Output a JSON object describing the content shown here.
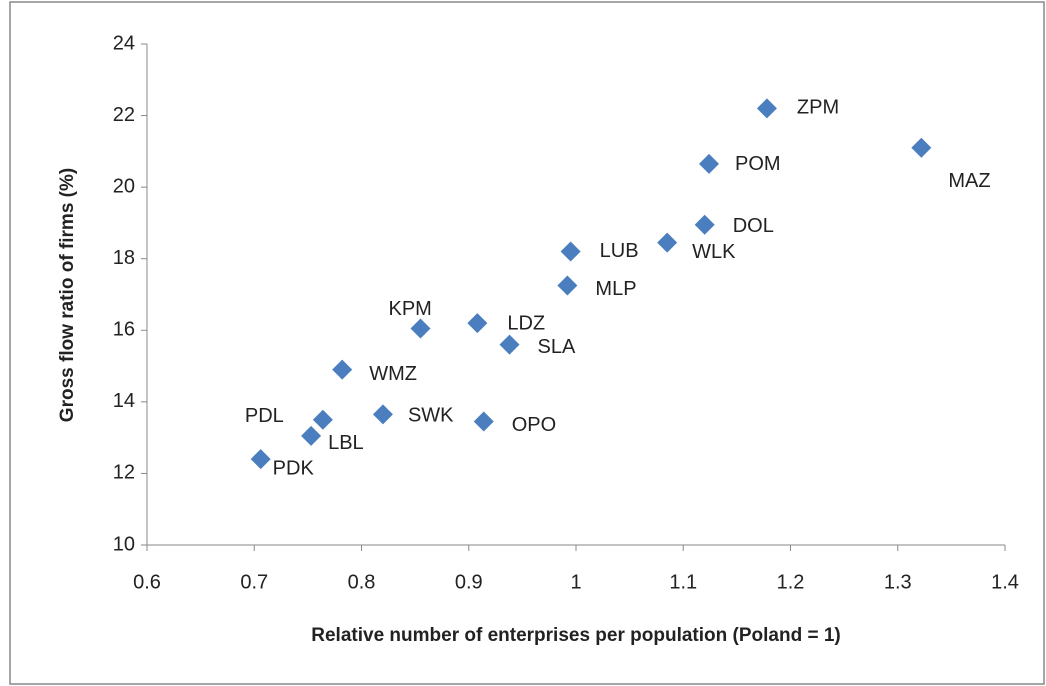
{
  "chart_data": {
    "type": "scatter",
    "x_label": "Relative number of enterprises per population  (Poland  = 1)",
    "y_label": "Gross flow ratio of firms (%)",
    "point_labels": [
      "ZPM",
      "POM",
      "MAZ",
      "DOL",
      "WLK",
      "LUB",
      "MLP",
      "KPM",
      "LDZ",
      "SLA",
      "WMZ",
      "SWK",
      "OPO",
      "PDL",
      "LBL",
      "PDK"
    ],
    "x": [
      1.178,
      1.124,
      1.322,
      1.12,
      1.085,
      0.995,
      0.992,
      0.855,
      0.908,
      0.938,
      0.782,
      0.82,
      0.914,
      0.764,
      0.753,
      0.706
    ],
    "values": [
      22.2,
      20.65,
      21.1,
      18.95,
      18.45,
      18.2,
      17.25,
      16.05,
      16.2,
      15.6,
      14.9,
      13.65,
      13.45,
      13.5,
      13.05,
      12.4
    ],
    "color": "#4a7ebf",
    "xlim": [
      0.6,
      1.4
    ],
    "xticks": [
      0.6,
      0.7,
      0.8,
      0.9,
      1,
      1.1,
      1.2,
      1.3,
      1.4
    ],
    "ylim": [
      10,
      24
    ],
    "yticks": [
      10,
      12,
      14,
      16,
      18,
      20,
      22,
      24
    ]
  }
}
